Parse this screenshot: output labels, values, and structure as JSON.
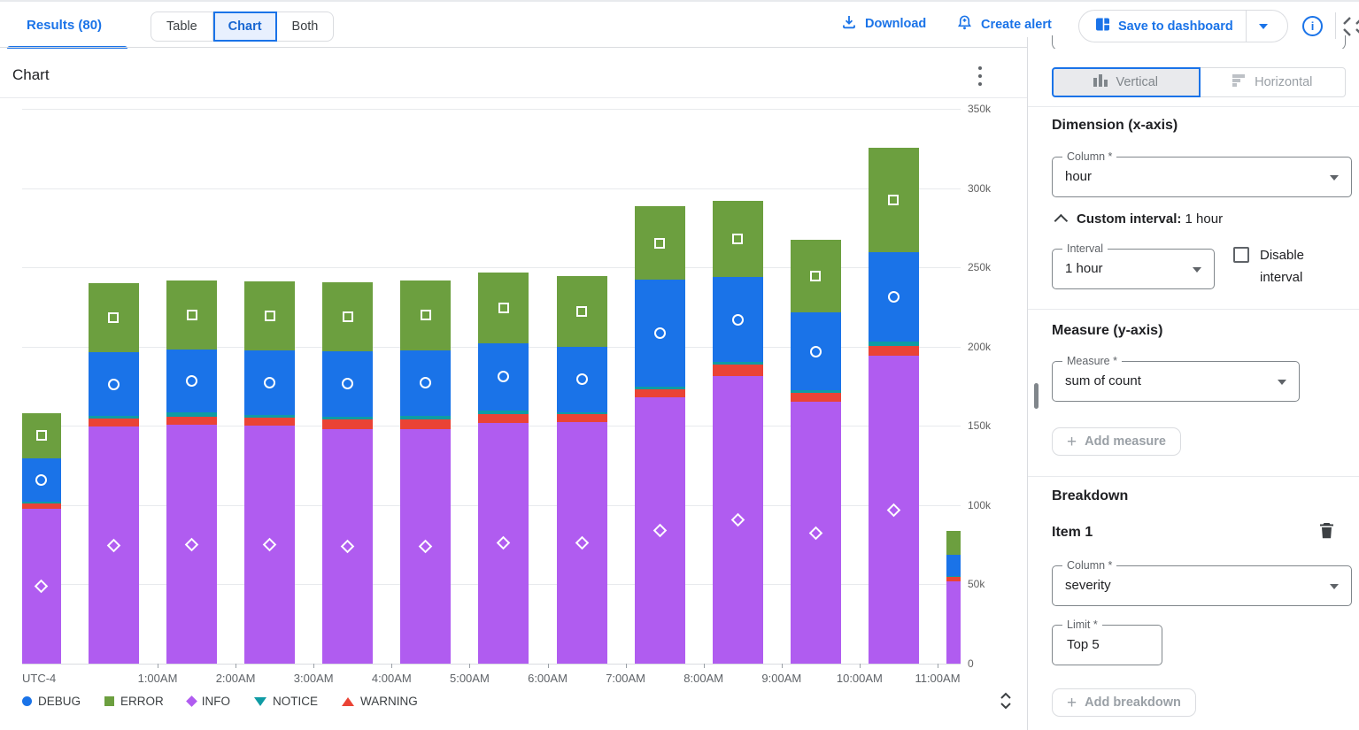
{
  "header": {
    "results_tab": "Results (80)",
    "view_toggle": [
      "Table",
      "Chart",
      "Both"
    ],
    "view_selected": "Chart",
    "download_label": "Download",
    "create_alert_label": "Create alert",
    "save_to_dashboard_label": "Save to dashboard"
  },
  "chart_panel": {
    "title": "Chart"
  },
  "chart_data": {
    "type": "bar",
    "stacked": true,
    "title": "Chart",
    "xlabel": "",
    "ylabel": "",
    "ylim": [
      0,
      350000
    ],
    "grid": true,
    "legend_position": "bottom",
    "x_tick_labels": [
      "UTC-4",
      "1:00AM",
      "2:00AM",
      "3:00AM",
      "4:00AM",
      "5:00AM",
      "6:00AM",
      "7:00AM",
      "8:00AM",
      "9:00AM",
      "10:00AM",
      "11:00AM"
    ],
    "y_ticks": [
      {
        "v": 350000,
        "label": "350k"
      },
      {
        "v": 300000,
        "label": "300k"
      },
      {
        "v": 250000,
        "label": "250k"
      },
      {
        "v": 200000,
        "label": "200k"
      },
      {
        "v": 150000,
        "label": "150k"
      },
      {
        "v": 100000,
        "label": "100k"
      },
      {
        "v": 50000,
        "label": "50k"
      },
      {
        "v": 0,
        "label": "0"
      }
    ],
    "stack_order_bottom_to_top": [
      "INFO",
      "WARNING",
      "NOTICE",
      "DEBUG",
      "ERROR"
    ],
    "legend": [
      "DEBUG",
      "ERROR",
      "INFO",
      "NOTICE",
      "WARNING"
    ],
    "series": [
      {
        "name": "DEBUG",
        "color": "#1a73e8",
        "marker": "circle",
        "values": [
          27500,
          40100,
          40100,
          40500,
          41000,
          41500,
          42000,
          41000,
          67400,
          53300,
          49400,
          56700,
          13500
        ]
      },
      {
        "name": "ERROR",
        "color": "#6c9f3f",
        "marker": "square",
        "values": [
          28300,
          44000,
          43500,
          43500,
          43500,
          44000,
          45000,
          44600,
          46700,
          48500,
          45500,
          65800,
          15000
        ]
      },
      {
        "name": "INFO",
        "color": "#b05cf0",
        "marker": "diamond",
        "values": [
          97500,
          149500,
          150500,
          150000,
          148000,
          148000,
          152000,
          152300,
          168200,
          181500,
          165000,
          194100,
          52000
        ]
      },
      {
        "name": "NOTICE",
        "color": "#0f9ba4",
        "marker": "triangle-down",
        "values": [
          1000,
          1700,
          2800,
          2000,
          2000,
          2300,
          2400,
          1500,
          1800,
          1900,
          1700,
          2400,
          500
        ]
      },
      {
        "name": "WARNING",
        "color": "#ea4335",
        "marker": "triangle-up",
        "values": [
          3700,
          5000,
          5000,
          5000,
          6000,
          6000,
          5500,
          5000,
          4600,
          7000,
          5600,
          6500,
          2500
        ]
      }
    ]
  },
  "sidebar": {
    "orientation_toggle": {
      "vertical": "Vertical",
      "horizontal": "Horizontal",
      "selected": "Vertical"
    },
    "dimension": {
      "heading": "Dimension (x-axis)",
      "column_label": "Column *",
      "column_value": "hour",
      "custom_interval_label": "Custom interval:",
      "custom_interval_value": "1 hour",
      "interval_label": "Interval",
      "interval_value": "1 hour",
      "disable_interval_label": "Disable interval",
      "disable_interval_checked": false
    },
    "measure": {
      "heading": "Measure (y-axis)",
      "measure_label": "Measure *",
      "measure_value": "sum of count",
      "add_measure_label": "Add measure"
    },
    "breakdown": {
      "heading": "Breakdown",
      "item_title": "Item 1",
      "column_label": "Column *",
      "column_value": "severity",
      "limit_label": "Limit *",
      "limit_value": "Top 5",
      "add_breakdown_label": "Add breakdown"
    }
  }
}
